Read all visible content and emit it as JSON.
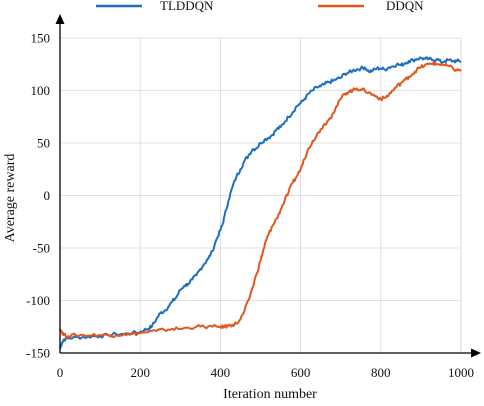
{
  "chart_data": {
    "type": "line",
    "title": "",
    "xlabel": "Iteration number",
    "ylabel": "Average reward",
    "xlim": [
      0,
      1000
    ],
    "ylim": [
      -150,
      150
    ],
    "xticks": [
      0,
      200,
      400,
      600,
      800,
      1000
    ],
    "yticks": [
      -150,
      -100,
      -50,
      0,
      50,
      100,
      150
    ],
    "grid": true,
    "legend_position": "top",
    "series": [
      {
        "name": "TLDDQN",
        "color": "#1f6fbf",
        "x": [
          0,
          5,
          10,
          20,
          40,
          60,
          80,
          100,
          120,
          140,
          160,
          180,
          200,
          210,
          220,
          230,
          240,
          250,
          260,
          270,
          280,
          290,
          300,
          310,
          320,
          330,
          340,
          350,
          360,
          370,
          380,
          390,
          400,
          405,
          410,
          420,
          430,
          440,
          450,
          460,
          470,
          480,
          490,
          500,
          510,
          520,
          530,
          540,
          550,
          560,
          570,
          580,
          590,
          600,
          610,
          620,
          630,
          640,
          650,
          660,
          670,
          680,
          690,
          700,
          710,
          720,
          730,
          740,
          750,
          760,
          770,
          780,
          790,
          800,
          810,
          820,
          830,
          840,
          850,
          860,
          870,
          880,
          890,
          900,
          910,
          920,
          930,
          940,
          950,
          960,
          970,
          980,
          990,
          1000
        ],
        "y": [
          -146,
          -140,
          -137,
          -136,
          -135,
          -135,
          -134,
          -134,
          -133,
          -132,
          -132,
          -131,
          -130,
          -128,
          -127,
          -124,
          -118,
          -112,
          -110,
          -106,
          -101,
          -97,
          -90,
          -86,
          -84,
          -80,
          -76,
          -70,
          -65,
          -60,
          -53,
          -42,
          -33,
          -28,
          -20,
          -5,
          8,
          18,
          25,
          33,
          38,
          44,
          45,
          50,
          53,
          55,
          58,
          63,
          65,
          70,
          75,
          79,
          85,
          88,
          92,
          97,
          100,
          103,
          104,
          106,
          108,
          109,
          111,
          112,
          116,
          117,
          119,
          120,
          121,
          122,
          118,
          119,
          121,
          121,
          120,
          122,
          123,
          125,
          124,
          126,
          128,
          129,
          130,
          131,
          130,
          130,
          129,
          130,
          127,
          128,
          129,
          128,
          128,
          128
        ]
      },
      {
        "name": "DDQN",
        "color": "#e0581f",
        "x": [
          0,
          5,
          10,
          20,
          40,
          60,
          80,
          100,
          120,
          140,
          160,
          180,
          200,
          220,
          240,
          260,
          280,
          300,
          320,
          340,
          360,
          380,
          400,
          410,
          420,
          430,
          440,
          450,
          460,
          470,
          480,
          490,
          500,
          505,
          510,
          515,
          520,
          525,
          530,
          540,
          550,
          560,
          570,
          580,
          590,
          600,
          610,
          620,
          630,
          640,
          650,
          660,
          670,
          680,
          690,
          700,
          710,
          720,
          730,
          740,
          750,
          760,
          770,
          780,
          790,
          800,
          810,
          820,
          830,
          840,
          850,
          860,
          870,
          880,
          890,
          900,
          910,
          920,
          930,
          940,
          950,
          960,
          970,
          980,
          990,
          1000
        ],
        "y": [
          -127,
          -130,
          -133,
          -134,
          -133,
          -133,
          -133,
          -133,
          -133,
          -133,
          -132,
          -132,
          -131,
          -130,
          -129,
          -128,
          -127,
          -127,
          -126,
          -125,
          -125,
          -125,
          -125,
          -125,
          -124,
          -123,
          -122,
          -118,
          -110,
          -100,
          -88,
          -75,
          -62,
          -55,
          -48,
          -42,
          -37,
          -33,
          -29,
          -22,
          -14,
          -5,
          3,
          12,
          18,
          25,
          35,
          45,
          52,
          57,
          63,
          68,
          72,
          78,
          85,
          92,
          97,
          99,
          100,
          102,
          101,
          100,
          98,
          96,
          94,
          92,
          93,
          96,
          100,
          104,
          107,
          110,
          113,
          116,
          120,
          122,
          124,
          125,
          126,
          125,
          125,
          124,
          123,
          121,
          119,
          120
        ]
      }
    ]
  }
}
